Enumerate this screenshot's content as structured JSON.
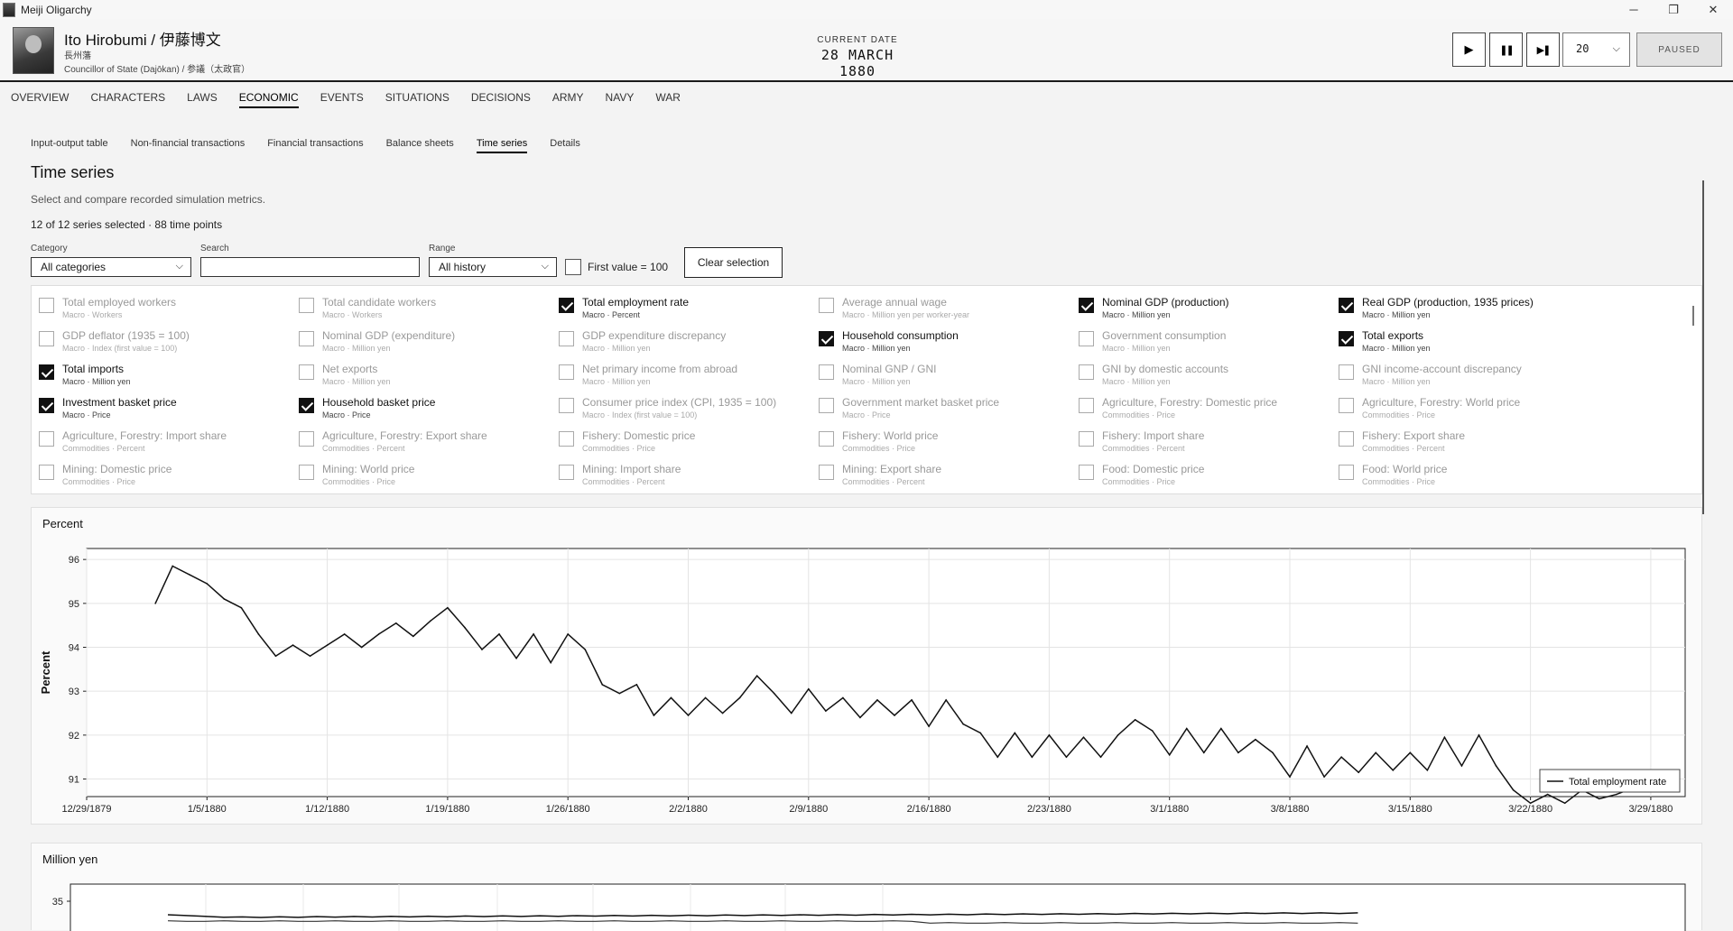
{
  "window": {
    "title": "Meiji Oligarchy",
    "minimize": "─",
    "maximize": "❐",
    "close": "✕"
  },
  "character": {
    "name": "Ito Hirobumi  /  伊藤博文",
    "clan": "長州藩",
    "title": "Councillor of State (Dajōkan)  /  参議（太政官）"
  },
  "date": {
    "label": "CURRENT DATE",
    "value": "28 MARCH 1880"
  },
  "controls": {
    "play": "▶",
    "pause": "❚❚",
    "step": "▶❚",
    "speed": "20",
    "status": "PAUSED"
  },
  "main_nav": [
    "OVERVIEW",
    "CHARACTERS",
    "LAWS",
    "ECONOMIC",
    "EVENTS",
    "SITUATIONS",
    "DECISIONS",
    "ARMY",
    "NAVY",
    "WAR"
  ],
  "main_nav_active": "ECONOMIC",
  "sub_nav": [
    "Input-output table",
    "Non-financial transactions",
    "Financial transactions",
    "Balance sheets",
    "Time series",
    "Details"
  ],
  "sub_nav_active": "Time series",
  "page": {
    "title": "Time series",
    "description": "Select and compare recorded simulation metrics.",
    "summary": "12 of 12 series selected · 88 time points"
  },
  "filters": {
    "category_label": "Category",
    "category_value": "All categories",
    "search_label": "Search",
    "search_value": "",
    "range_label": "Range",
    "range_value": "All history",
    "first_value_label": "First value = 100",
    "clear_label": "Clear selection"
  },
  "series_items": [
    {
      "name": "Total employed workers",
      "meta": "Macro · Workers",
      "checked": false
    },
    {
      "name": "Total candidate workers",
      "meta": "Macro · Workers",
      "checked": false
    },
    {
      "name": "Total employment rate",
      "meta": "Macro · Percent",
      "checked": true
    },
    {
      "name": "Average annual wage",
      "meta": "Macro · Million yen per worker-year",
      "checked": false
    },
    {
      "name": "Nominal GDP (production)",
      "meta": "Macro · Million yen",
      "checked": true
    },
    {
      "name": "Real GDP (production, 1935 prices)",
      "meta": "Macro · Million yen",
      "checked": true
    },
    {
      "name": "GDP deflator (1935 = 100)",
      "meta": "Macro · Index (first value = 100)",
      "checked": false
    },
    {
      "name": "Nominal GDP (expenditure)",
      "meta": "Macro · Million yen",
      "checked": false
    },
    {
      "name": "GDP expenditure discrepancy",
      "meta": "Macro · Million yen",
      "checked": false
    },
    {
      "name": "Household consumption",
      "meta": "Macro · Million yen",
      "checked": true
    },
    {
      "name": "Government consumption",
      "meta": "Macro · Million yen",
      "checked": false
    },
    {
      "name": "Total exports",
      "meta": "Macro · Million yen",
      "checked": true
    },
    {
      "name": "Total imports",
      "meta": "Macro · Million yen",
      "checked": true
    },
    {
      "name": "Net exports",
      "meta": "Macro · Million yen",
      "checked": false
    },
    {
      "name": "Net primary income from abroad",
      "meta": "Macro · Million yen",
      "checked": false
    },
    {
      "name": "Nominal GNP / GNI",
      "meta": "Macro · Million yen",
      "checked": false
    },
    {
      "name": "GNI by domestic accounts",
      "meta": "Macro · Million yen",
      "checked": false
    },
    {
      "name": "GNI income-account discrepancy",
      "meta": "Macro · Million yen",
      "checked": false
    },
    {
      "name": "Investment basket price",
      "meta": "Macro · Price",
      "checked": true
    },
    {
      "name": "Household basket price",
      "meta": "Macro · Price",
      "checked": true
    },
    {
      "name": "Consumer price index (CPI, 1935 = 100)",
      "meta": "Macro · Index (first value = 100)",
      "checked": false
    },
    {
      "name": "Government market basket price",
      "meta": "Macro · Price",
      "checked": false
    },
    {
      "name": "Agriculture, Forestry: Domestic price",
      "meta": "Commodities · Price",
      "checked": false
    },
    {
      "name": "Agriculture, Forestry: World price",
      "meta": "Commodities · Price",
      "checked": false
    },
    {
      "name": "Agriculture, Forestry: Import share",
      "meta": "Commodities · Percent",
      "checked": false
    },
    {
      "name": "Agriculture, Forestry: Export share",
      "meta": "Commodities · Percent",
      "checked": false
    },
    {
      "name": "Fishery: Domestic price",
      "meta": "Commodities · Price",
      "checked": false
    },
    {
      "name": "Fishery: World price",
      "meta": "Commodities · Price",
      "checked": false
    },
    {
      "name": "Fishery: Import share",
      "meta": "Commodities · Percent",
      "checked": false
    },
    {
      "name": "Fishery: Export share",
      "meta": "Commodities · Percent",
      "checked": false
    },
    {
      "name": "Mining: Domestic price",
      "meta": "Commodities · Price",
      "checked": false
    },
    {
      "name": "Mining: World price",
      "meta": "Commodities · Price",
      "checked": false
    },
    {
      "name": "Mining: Import share",
      "meta": "Commodities · Percent",
      "checked": false
    },
    {
      "name": "Mining: Export share",
      "meta": "Commodities · Percent",
      "checked": false
    },
    {
      "name": "Food: Domestic price",
      "meta": "Commodities · Price",
      "checked": false
    },
    {
      "name": "Food: World price",
      "meta": "Commodities · Price",
      "checked": false
    }
  ],
  "chart_data": [
    {
      "type": "line",
      "title": "Percent",
      "ylabel": "Percent",
      "ylim": [
        90.6,
        96.25
      ],
      "yticks": [
        91,
        92,
        93,
        94,
        95,
        96
      ],
      "xlim": [
        "1879-12-29",
        "1880-03-31"
      ],
      "xticks": [
        "12/29/1879",
        "1/5/1880",
        "1/12/1880",
        "1/19/1880",
        "1/26/1880",
        "2/2/1880",
        "2/9/1880",
        "2/16/1880",
        "2/23/1880",
        "3/1/1880",
        "3/8/1880",
        "3/15/1880",
        "3/22/1880",
        "3/29/1880"
      ],
      "grid": true,
      "legend_position": "bottom-right",
      "series": [
        {
          "name": "Total employment rate",
          "start": "1880-01-02",
          "values": [
            95.0,
            95.85,
            95.65,
            95.45,
            95.1,
            94.9,
            94.3,
            93.8,
            94.05,
            93.8,
            94.05,
            94.3,
            94.0,
            94.3,
            94.55,
            94.25,
            94.6,
            94.9,
            94.45,
            93.95,
            94.3,
            93.75,
            94.3,
            93.65,
            94.3,
            93.95,
            93.15,
            92.95,
            93.15,
            92.45,
            92.85,
            92.45,
            92.85,
            92.5,
            92.85,
            93.35,
            92.95,
            92.5,
            93.05,
            92.55,
            92.85,
            92.4,
            92.8,
            92.45,
            92.8,
            92.2,
            92.8,
            92.25,
            92.05,
            91.5,
            92.05,
            91.5,
            92.0,
            91.5,
            91.95,
            91.5,
            92.0,
            92.35,
            92.1,
            91.55,
            92.15,
            91.6,
            92.15,
            91.6,
            91.9,
            91.6,
            91.05,
            91.75,
            91.05,
            91.5,
            91.15,
            91.6,
            91.2,
            91.6,
            91.2,
            91.95,
            91.3,
            92.0,
            91.3,
            90.75,
            90.45,
            90.65,
            90.45,
            90.75,
            90.55,
            90.65,
            90.8,
            90.8
          ]
        }
      ]
    },
    {
      "type": "line",
      "title": "Million yen",
      "yticks": [
        35
      ],
      "series": []
    }
  ]
}
